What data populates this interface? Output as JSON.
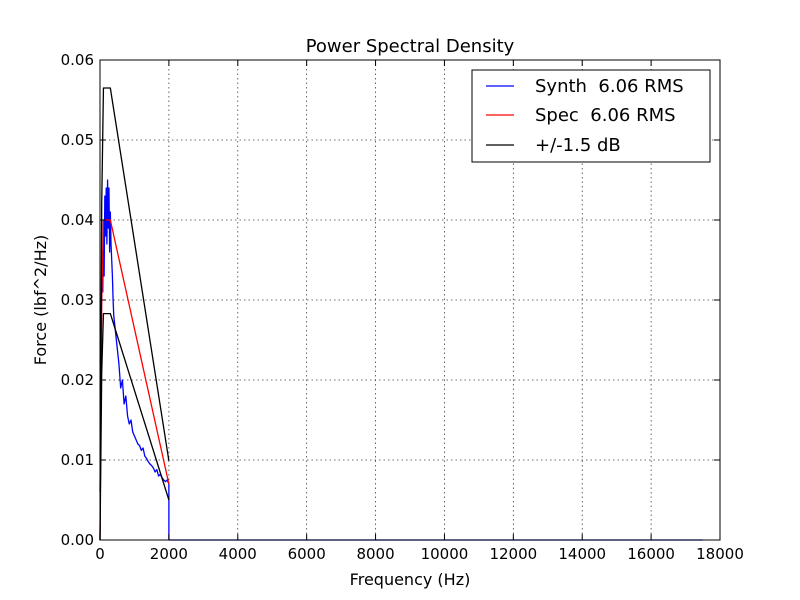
{
  "chart_data": {
    "type": "line",
    "title": "Power Spectral Density",
    "xlabel": "Frequency (Hz)",
    "ylabel": "Force (lbf^2/Hz)",
    "xlim": [
      0,
      18000
    ],
    "ylim": [
      0,
      0.06
    ],
    "x_ticks": [
      "0",
      "2000",
      "4000",
      "6000",
      "8000",
      "10000",
      "12000",
      "14000",
      "16000",
      "18000"
    ],
    "y_ticks": [
      "0.00",
      "0.01",
      "0.02",
      "0.03",
      "0.04",
      "0.05",
      "0.06"
    ],
    "grid": true,
    "legend_position": "top-right",
    "series": [
      {
        "name": "Synth  6.06 RMS",
        "color": "#0000ff",
        "x": [
          0,
          20,
          40,
          60,
          80,
          100,
          120,
          140,
          160,
          180,
          200,
          220,
          240,
          260,
          280,
          300,
          320,
          340,
          360,
          380,
          400,
          450,
          500,
          550,
          600,
          650,
          700,
          750,
          800,
          850,
          900,
          950,
          1000,
          1050,
          1100,
          1150,
          1200,
          1250,
          1300,
          1350,
          1400,
          1450,
          1500,
          1550,
          1600,
          1650,
          1700,
          1750,
          1800,
          1850,
          1900,
          1950,
          2000,
          2000,
          2100,
          4000,
          8000,
          12000,
          17500
        ],
        "y": [
          0.006,
          0.015,
          0.028,
          0.036,
          0.031,
          0.04,
          0.033,
          0.043,
          0.038,
          0.044,
          0.037,
          0.045,
          0.039,
          0.044,
          0.036,
          0.041,
          0.037,
          0.035,
          0.033,
          0.03,
          0.028,
          0.026,
          0.024,
          0.022,
          0.019,
          0.02,
          0.017,
          0.018,
          0.0155,
          0.0145,
          0.015,
          0.0135,
          0.013,
          0.0125,
          0.012,
          0.0118,
          0.0112,
          0.0115,
          0.0105,
          0.0102,
          0.0098,
          0.0095,
          0.0093,
          0.009,
          0.0085,
          0.0088,
          0.008,
          0.0082,
          0.0078,
          0.0075,
          0.0073,
          0.0075,
          0.007,
          0.0,
          0.0,
          0.0,
          0.0,
          0.0,
          0.0
        ]
      },
      {
        "name": "Spec  6.06 RMS",
        "color": "#ff0000",
        "x": [
          0,
          50,
          100,
          300,
          2000
        ],
        "y": [
          0.0,
          0.03,
          0.04,
          0.04,
          0.007
        ]
      },
      {
        "name": "+/-1.5 dB",
        "color": "#000000",
        "x": [
          0,
          50,
          100,
          300,
          2000
        ],
        "y": [
          0.0,
          0.042,
          0.0565,
          0.0565,
          0.0099
        ]
      },
      {
        "name": "",
        "color": "#000000",
        "x": [
          0,
          50,
          100,
          300,
          2000
        ],
        "y": [
          0.0,
          0.021,
          0.0283,
          0.0283,
          0.005
        ]
      }
    ]
  }
}
